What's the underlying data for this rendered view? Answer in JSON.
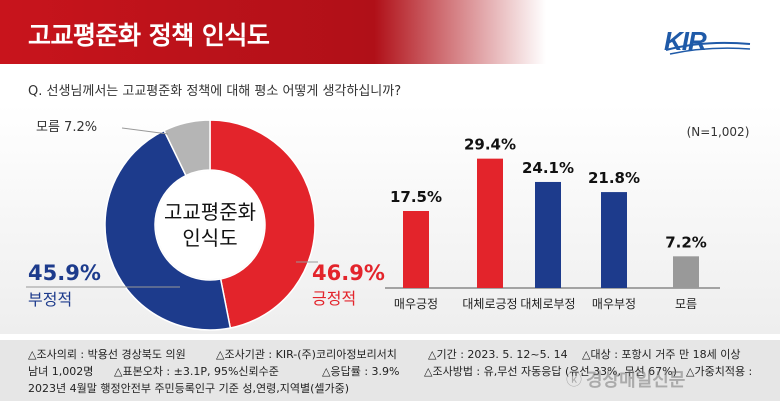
{
  "header": {
    "title": "고교평준화 정책 인식도",
    "logo_text": "KIR"
  },
  "question": "Q. 선생님께서는 고교평준화 정책에 대해 평소 어떻게 생각하십니까?",
  "sample_note": "(N=1,002)",
  "colors": {
    "header_red": "#c8141c",
    "positive_red": "#e3242b",
    "negative_navy": "#1d3b8c",
    "unknown_gray": "#b5b5b5",
    "logo_blue": "#1f5aa8"
  },
  "chart_data": [
    {
      "type": "pie",
      "variant": "donut",
      "center_label_line1": "고교평준화",
      "center_label_line2": "인식도",
      "slices": [
        {
          "name": "긍정적",
          "value": 46.9,
          "value_label": "46.9%",
          "color": "#e3242b"
        },
        {
          "name": "부정적",
          "value": 45.9,
          "value_label": "45.9%",
          "color": "#1d3b8c"
        },
        {
          "name": "모름",
          "value": 7.2,
          "value_label": "모름 7.2%",
          "color": "#b5b5b5"
        }
      ]
    },
    {
      "type": "bar",
      "categories": [
        "매우긍정",
        "대체로긍정",
        "대체로부정",
        "매우부정",
        "모름"
      ],
      "values": [
        17.5,
        29.4,
        24.1,
        21.8,
        7.2
      ],
      "value_labels": [
        "17.5%",
        "29.4%",
        "24.1%",
        "21.8%",
        "7.2%"
      ],
      "colors": [
        "#e3242b",
        "#e3242b",
        "#1d3b8c",
        "#1d3b8c",
        "#999999"
      ],
      "ylim": [
        0,
        30
      ]
    }
  ],
  "footer": {
    "line1": [
      "△조사의뢰 : 박용선 경상북도 의원",
      "△조사기관 : KIR-(주)코리아정보리서치",
      "△기간 : 2023. 5. 12~5. 14",
      "△대상 : 포항시 거주 만 18세 이상"
    ],
    "line2": [
      "남녀 1,002명",
      "△표본오차 : ±3.1P, 95%신뢰수준",
      "△응답률 : 3.9%",
      "△조사방법 : 유,무선 자동응답 (유선 33%, 무선 67%)",
      "△가중치적용 :"
    ],
    "line3": "2023년 4월말 행정안전부 주민등록인구 기준 성,연령,지역별(셀가중)",
    "watermark": "경상매일신문"
  }
}
